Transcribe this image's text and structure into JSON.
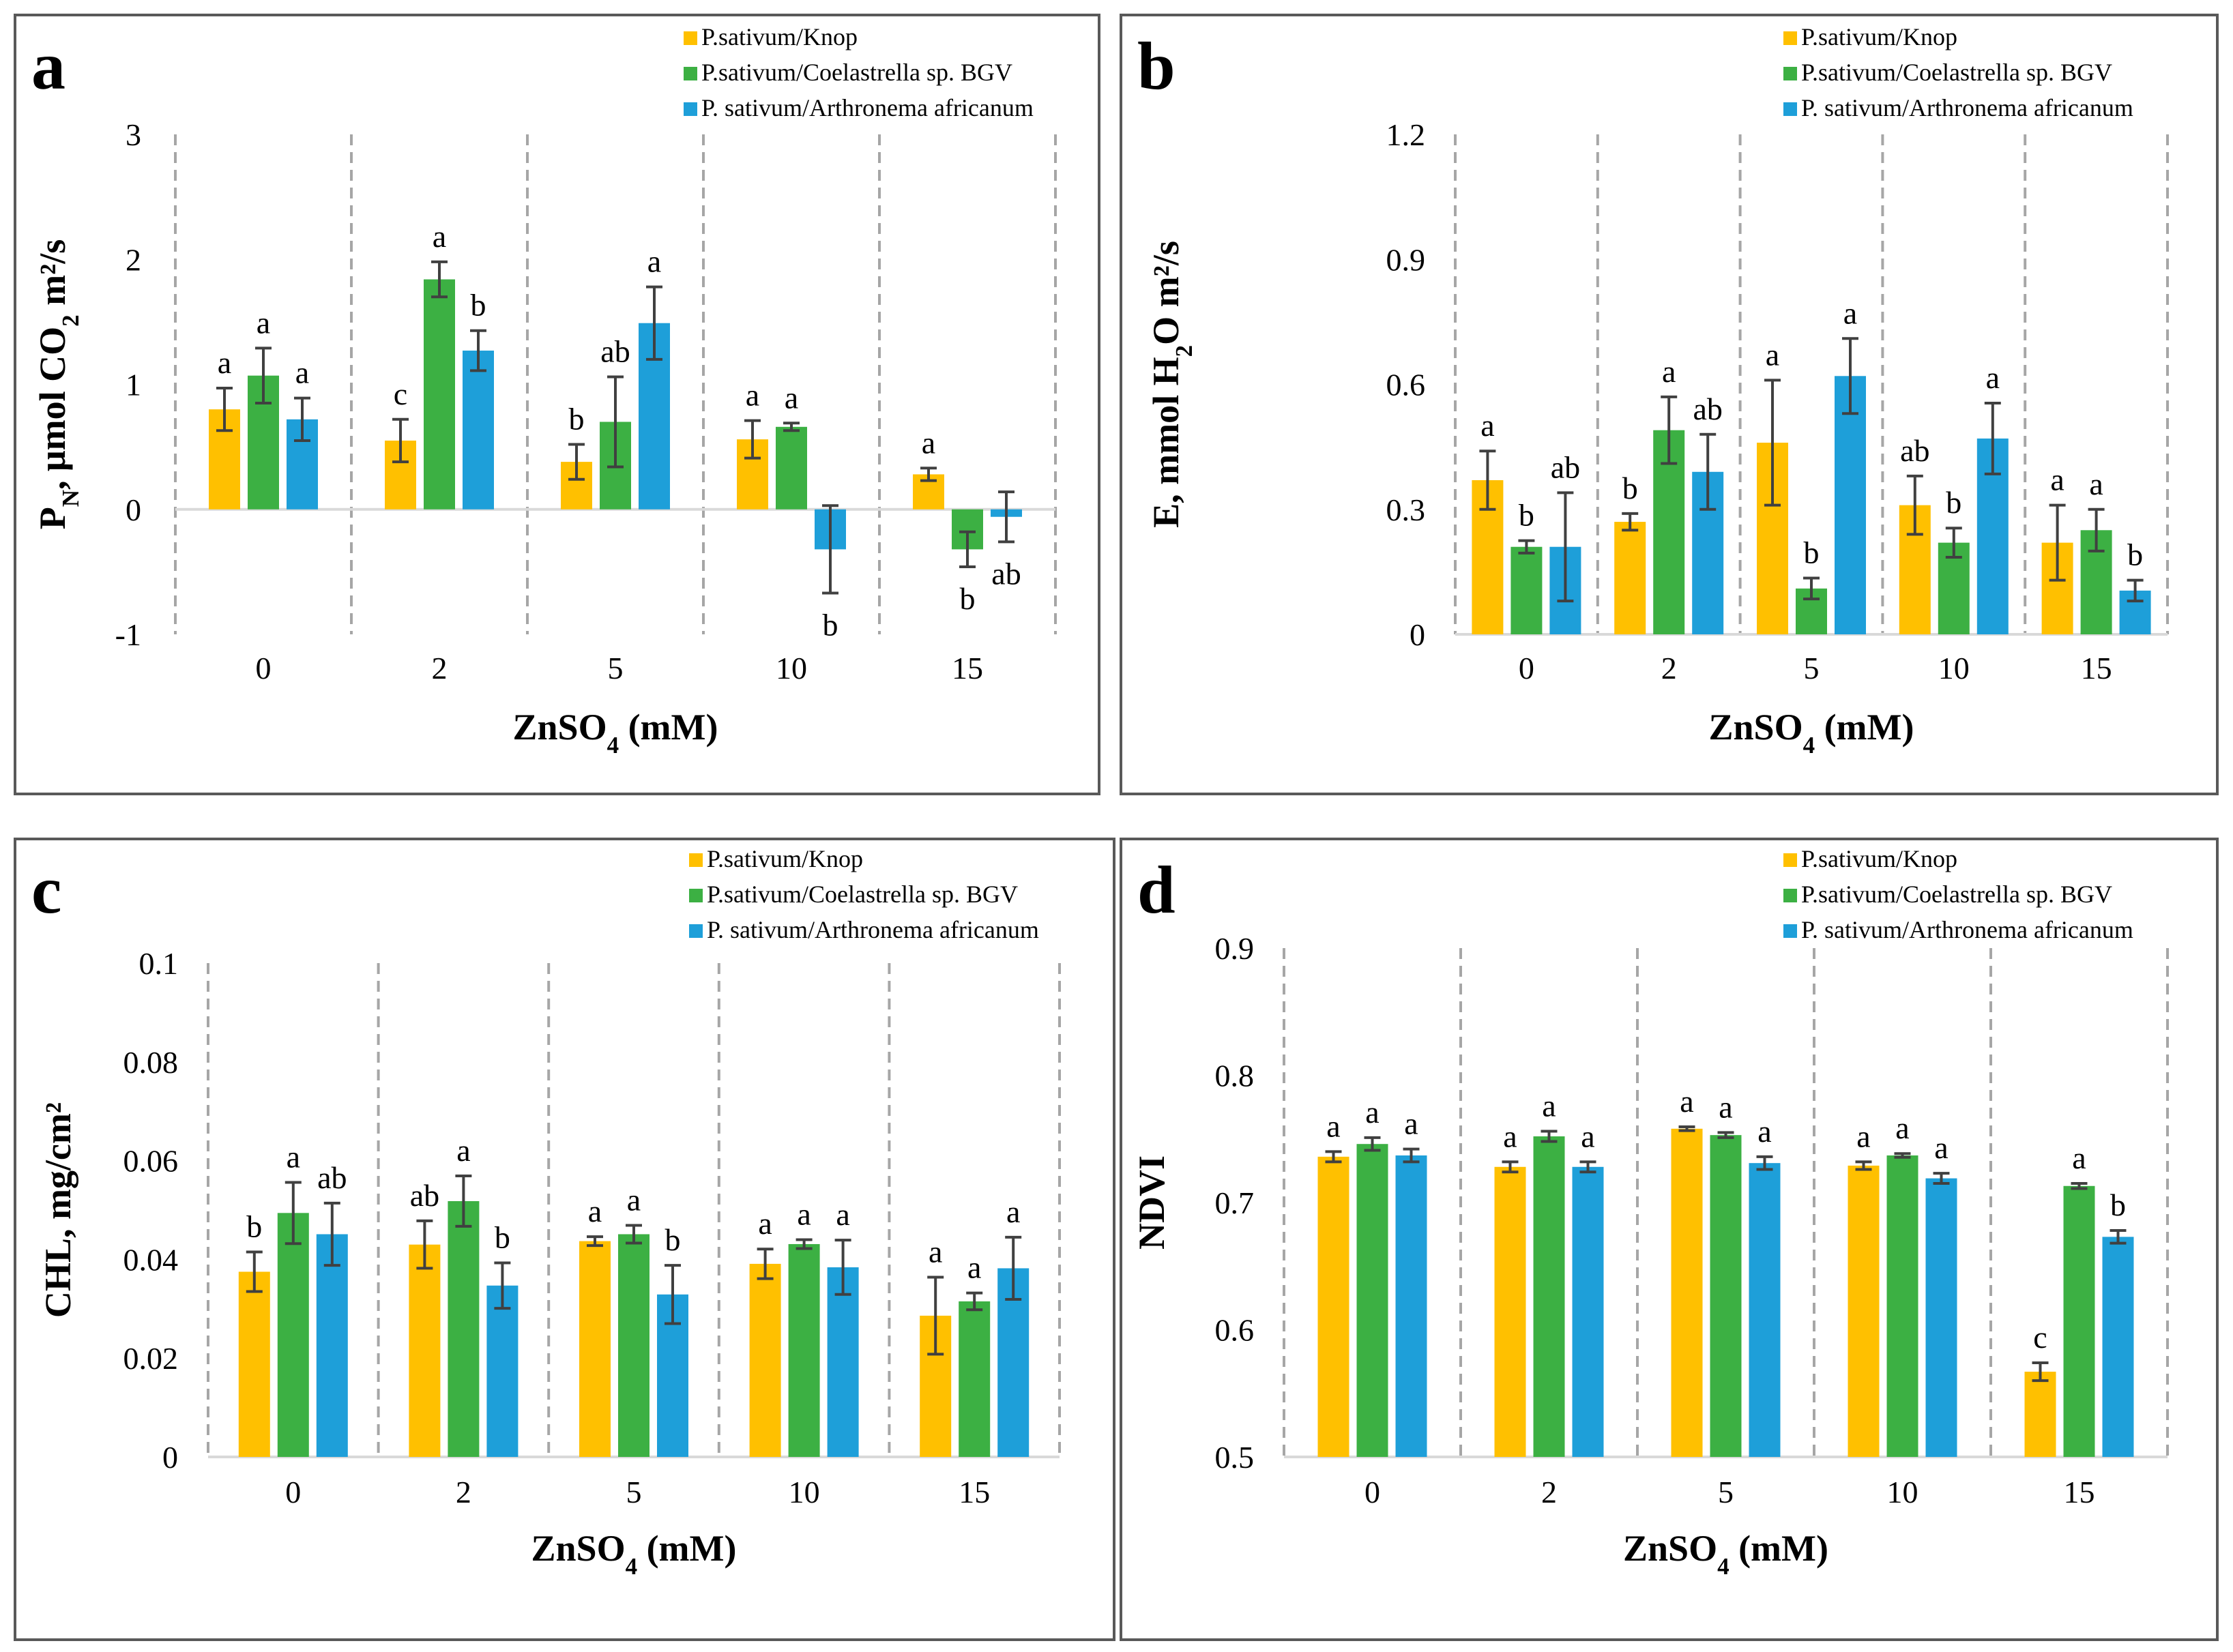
{
  "colors": {
    "knop": "#FFC000",
    "coelastrella": "#3CB043",
    "arthronema": "#1E9FD9",
    "error": "#404040",
    "grid": "#A6A6A6",
    "frame": "#595959"
  },
  "chart_data": [
    {
      "panel": "a",
      "type": "bar",
      "panel_label": "a",
      "ylabel_parts": [
        "P",
        "N",
        ", μmol CO",
        "2",
        " m²/s"
      ],
      "xlabel_parts": [
        "ZnSO",
        "4",
        " (mM)"
      ],
      "categories": [
        "0",
        "2",
        "5",
        "10",
        "15"
      ],
      "ylim": [
        -1,
        3
      ],
      "yticks": [
        -1,
        0,
        1,
        2,
        3
      ],
      "ytick_labels": [
        "-1",
        "0",
        "1",
        "2",
        "3"
      ],
      "legend": [
        "P.sativum/Knop",
        "P.sativum/Coelastrella sp. BGV",
        "P. sativum/Arthronema africanum"
      ],
      "series": [
        {
          "name": "P.sativum/Knop",
          "values": [
            0.8,
            0.55,
            0.38,
            0.56,
            0.28
          ],
          "errors": [
            0.17,
            0.17,
            0.14,
            0.15,
            0.05
          ],
          "letters": [
            "a",
            "c",
            "b",
            "a",
            "a"
          ]
        },
        {
          "name": "P.sativum/Coelastrella sp. BGV",
          "values": [
            1.07,
            1.84,
            0.7,
            0.66,
            -0.32
          ],
          "errors": [
            0.22,
            0.14,
            0.36,
            0.03,
            0.14
          ],
          "letters": [
            "a",
            "a",
            "ab",
            "a",
            "b"
          ]
        },
        {
          "name": "P. sativum/Arthronema africanum",
          "values": [
            0.72,
            1.27,
            1.49,
            -0.32,
            -0.06
          ],
          "errors": [
            0.17,
            0.16,
            0.29,
            0.35,
            0.2
          ],
          "letters": [
            "a",
            "b",
            "a",
            "b",
            "ab"
          ]
        }
      ]
    },
    {
      "panel": "b",
      "type": "bar",
      "panel_label": "b",
      "ylabel_parts": [
        "E, mmol H",
        "2",
        "O m²/s"
      ],
      "xlabel_parts": [
        "ZnSO",
        "4",
        " (mM)"
      ],
      "categories": [
        "0",
        "2",
        "5",
        "10",
        "15"
      ],
      "ylim": [
        0,
        1.2
      ],
      "yticks": [
        0,
        0.3,
        0.6,
        0.9,
        1.2
      ],
      "ytick_labels": [
        "0",
        "0.3",
        "0.6",
        "0.9",
        "1.2"
      ],
      "legend": [
        "P.sativum/Knop",
        "P.sativum/Coelastrella sp. BGV",
        "P. sativum/Arthronema africanum"
      ],
      "series": [
        {
          "name": "P.sativum/Knop",
          "values": [
            0.37,
            0.27,
            0.46,
            0.31,
            0.22
          ],
          "errors": [
            0.07,
            0.02,
            0.15,
            0.07,
            0.09
          ],
          "letters": [
            "a",
            "b",
            "a",
            "ab",
            "a"
          ]
        },
        {
          "name": "P.sativum/Coelastrella sp. BGV",
          "values": [
            0.21,
            0.49,
            0.11,
            0.22,
            0.25
          ],
          "errors": [
            0.015,
            0.08,
            0.025,
            0.035,
            0.05
          ],
          "letters": [
            "b",
            "a",
            "b",
            "b",
            "a"
          ]
        },
        {
          "name": "P. sativum/Arthronema africanum",
          "values": [
            0.21,
            0.39,
            0.62,
            0.47,
            0.105
          ],
          "errors": [
            0.13,
            0.09,
            0.09,
            0.085,
            0.025
          ],
          "letters": [
            "ab",
            "ab",
            "a",
            "a",
            "b"
          ]
        }
      ]
    },
    {
      "panel": "c",
      "type": "bar",
      "panel_label": "c",
      "ylabel_parts": [
        "CHL, mg/cm²"
      ],
      "xlabel_parts": [
        "ZnSO",
        "4",
        " (mM)"
      ],
      "categories": [
        "0",
        "2",
        "5",
        "10",
        "15"
      ],
      "ylim": [
        0,
        0.1
      ],
      "yticks": [
        0,
        0.02,
        0.04,
        0.06,
        0.08,
        0.1
      ],
      "ytick_labels": [
        "0",
        "0.02",
        "0.04",
        "0.06",
        "0.08",
        "0.1"
      ],
      "legend": [
        "P.sativum/Knop",
        "P.sativum/Coelastrella sp. BGV",
        "P. sativum/Arthronema africanum"
      ],
      "series": [
        {
          "name": "P.sativum/Knop",
          "values": [
            0.0375,
            0.043,
            0.0437,
            0.0391,
            0.0286
          ],
          "errors": [
            0.004,
            0.0048,
            0.0009,
            0.003,
            0.0078
          ],
          "letters": [
            "b",
            "ab",
            "a",
            "a",
            "a"
          ]
        },
        {
          "name": "P.sativum/Coelastrella sp. BGV",
          "values": [
            0.0494,
            0.0518,
            0.0451,
            0.0431,
            0.0315
          ],
          "errors": [
            0.0062,
            0.0051,
            0.0018,
            0.0009,
            0.0017
          ],
          "letters": [
            "a",
            "a",
            "a",
            "a",
            "a"
          ]
        },
        {
          "name": "P. sativum/Arthronema africanum",
          "values": [
            0.0451,
            0.0347,
            0.0329,
            0.0384,
            0.0382
          ],
          "errors": [
            0.0063,
            0.0046,
            0.0059,
            0.0055,
            0.0063
          ],
          "letters": [
            "ab",
            "b",
            "b",
            "a",
            "a"
          ]
        }
      ]
    },
    {
      "panel": "d",
      "type": "bar",
      "panel_label": "d",
      "ylabel_parts": [
        "NDVI"
      ],
      "xlabel_parts": [
        "ZnSO",
        "4",
        " (mM)"
      ],
      "categories": [
        "0",
        "2",
        "5",
        "10",
        "15"
      ],
      "ylim": [
        0.5,
        0.9
      ],
      "yticks": [
        0.5,
        0.6,
        0.7,
        0.8,
        0.9
      ],
      "ytick_labels": [
        "0.5",
        "0.6",
        "0.7",
        "0.8",
        "0.9"
      ],
      "legend": [
        "P.sativum/Knop",
        "P.sativum/Coelastrella sp. BGV",
        "P. sativum/Arthronema africanum"
      ],
      "series": [
        {
          "name": "P.sativum/Knop",
          "values": [
            0.736,
            0.728,
            0.758,
            0.729,
            0.567
          ],
          "errors": [
            0.004,
            0.004,
            0.0015,
            0.003,
            0.007
          ],
          "letters": [
            "a",
            "a",
            "a",
            "a",
            "c"
          ]
        },
        {
          "name": "P.sativum/Coelastrella sp. BGV",
          "values": [
            0.746,
            0.752,
            0.753,
            0.737,
            0.713
          ],
          "errors": [
            0.005,
            0.004,
            0.002,
            0.0015,
            0.002
          ],
          "letters": [
            "a",
            "a",
            "a",
            "a",
            "a"
          ]
        },
        {
          "name": "P. sativum/Arthronema africanum",
          "values": [
            0.737,
            0.728,
            0.731,
            0.719,
            0.673
          ],
          "errors": [
            0.005,
            0.004,
            0.005,
            0.004,
            0.005
          ],
          "letters": [
            "a",
            "a",
            "a",
            "a",
            "b"
          ]
        }
      ]
    }
  ]
}
